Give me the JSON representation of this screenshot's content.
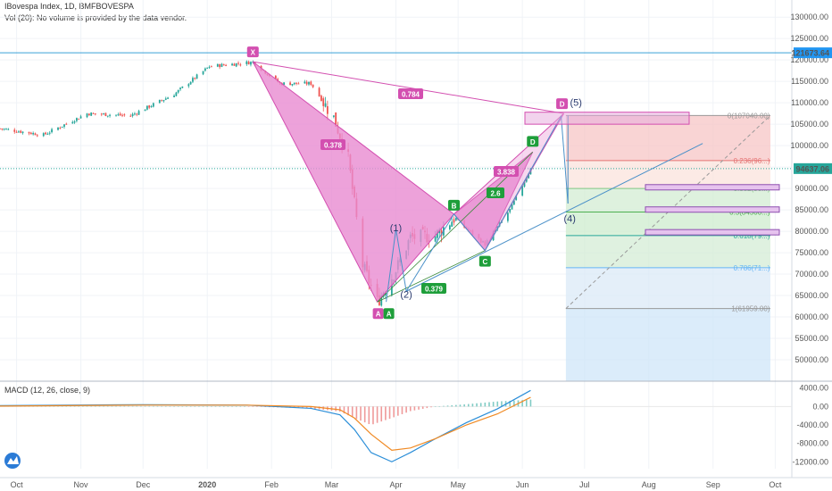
{
  "header": {
    "symbol_line": "IBovespa Index, 1D, BMFBOVESPA",
    "volume_line": "Vol (20): No volume is provided by the data vendor."
  },
  "macd_label": "MACD (12, 26, close, 9)",
  "colors": {
    "up": "#26a69a",
    "down": "#ef5350",
    "pattern": "#d34fb0",
    "pattern_fill": "#e98bd1",
    "green_badge": "#1e9e3a",
    "hline": "#3aa0d8",
    "macd": "#2b8ed8",
    "signal": "#f08a24"
  },
  "chart_data": {
    "type": "candlestick",
    "price_axis": {
      "ylim": [
        45000,
        134000
      ],
      "ticks": [
        "130000.00",
        "125000.00",
        "120000.00",
        "115000.00",
        "110000.00",
        "105000.00",
        "100000.00",
        "95000.00",
        "90000.00",
        "85000.00",
        "80000.00",
        "75000.00",
        "70000.00",
        "65000.00",
        "60000.00",
        "55000.00",
        "50000.00"
      ]
    },
    "time_axis": {
      "labels": [
        "Oct",
        "Nov",
        "Dec",
        "2020",
        "Feb",
        "Mar",
        "Apr",
        "May",
        "Jun",
        "Jul",
        "Aug",
        "Sep",
        "Oct"
      ]
    },
    "price_labels": [
      {
        "text": "121673.64",
        "value": 121673.64,
        "color": "#2196f3"
      },
      {
        "text": "94637.06",
        "value": 94637.06,
        "color": "#26a69a"
      }
    ],
    "closes": [
      {
        "date": "2019-09-23",
        "close": 104000
      },
      {
        "date": "2019-10-14",
        "close": 102500
      },
      {
        "date": "2019-11-04",
        "close": 107500
      },
      {
        "date": "2019-11-25",
        "close": 107000
      },
      {
        "date": "2019-12-16",
        "close": 112000
      },
      {
        "date": "2020-01-02",
        "close": 118500
      },
      {
        "date": "2020-01-23",
        "close": 119500
      },
      {
        "date": "2020-02-05",
        "close": 114500
      },
      {
        "date": "2020-02-20",
        "close": 114500
      },
      {
        "date": "2020-03-02",
        "close": 106500
      },
      {
        "date": "2020-03-09",
        "close": 97000
      },
      {
        "date": "2020-03-16",
        "close": 72000
      },
      {
        "date": "2020-03-23",
        "close": 63500
      },
      {
        "date": "2020-04-01",
        "close": 71000
      },
      {
        "date": "2020-04-08",
        "close": 78500
      },
      {
        "date": "2020-04-20",
        "close": 79000
      },
      {
        "date": "2020-04-29",
        "close": 83000
      },
      {
        "date": "2020-05-14",
        "close": 77000
      },
      {
        "date": "2020-05-26",
        "close": 85000
      },
      {
        "date": "2020-06-05",
        "close": 94637
      }
    ],
    "harmonic_pattern": {
      "points": [
        {
          "label": "X",
          "date": "2020-01-23",
          "value": 119600
        },
        {
          "label": "A",
          "date": "2020-03-23",
          "value": 63500
        },
        {
          "label": "B",
          "date": "2020-04-29",
          "value": 84000
        },
        {
          "label": "C",
          "date": "2020-05-14",
          "value": 75500
        },
        {
          "label": "D",
          "date": "2020-06-06",
          "value": 98500
        },
        {
          "label": "D",
          "date": "2020-06-21",
          "value": 107500
        }
      ],
      "ratios": [
        {
          "text": "0.378"
        },
        {
          "text": "0.784"
        },
        {
          "text": "0.379"
        },
        {
          "text": "2.6"
        },
        {
          "text": "3.838"
        }
      ],
      "second_a_label": "A"
    },
    "elliott_waves": [
      {
        "label": "(1)",
        "date": "2020-04-01",
        "value": 80000
      },
      {
        "label": "(2)",
        "date": "2020-04-06",
        "value": 64500
      },
      {
        "label": "(4)",
        "date": "2020-06-23",
        "value": 86000
      },
      {
        "label": "(5)",
        "date": "2020-06-23",
        "value": 108500
      }
    ],
    "fibonacci": [
      {
        "text": "0(107040.00)",
        "level": 0,
        "value": 107040
      },
      {
        "text": "0.236(96...)",
        "level": 0.236,
        "value": 96500
      },
      {
        "text": "0.382(90...)",
        "level": 0.382,
        "value": 90000
      },
      {
        "text": "0.5(84500...)",
        "level": 0.5,
        "value": 84500
      },
      {
        "text": "0.618(79...)",
        "level": 0.618,
        "value": 79000
      },
      {
        "text": "0.786(71...)",
        "level": 0.786,
        "value": 71500
      },
      {
        "text": "1(61959.00)",
        "level": 1,
        "value": 61959
      }
    ],
    "macd": {
      "ticks": [
        "4000.00",
        "0.00",
        "-4000.00",
        "-8000.00",
        "-12000.00"
      ],
      "ylim": [
        -13500,
        5500
      ],
      "macd_line": [
        {
          "date": "2019-09-23",
          "value": 200
        },
        {
          "date": "2019-12-01",
          "value": 400
        },
        {
          "date": "2020-01-20",
          "value": 300
        },
        {
          "date": "2020-02-20",
          "value": -400
        },
        {
          "date": "2020-03-05",
          "value": -1800
        },
        {
          "date": "2020-03-12",
          "value": -5000
        },
        {
          "date": "2020-03-20",
          "value": -10000
        },
        {
          "date": "2020-03-30",
          "value": -12000
        },
        {
          "date": "2020-04-08",
          "value": -10000
        },
        {
          "date": "2020-04-20",
          "value": -7000
        },
        {
          "date": "2020-05-05",
          "value": -3500
        },
        {
          "date": "2020-05-20",
          "value": -500
        },
        {
          "date": "2020-06-05",
          "value": 3500
        }
      ],
      "signal_line": [
        {
          "date": "2019-09-23",
          "value": 100
        },
        {
          "date": "2019-12-01",
          "value": 300
        },
        {
          "date": "2020-01-20",
          "value": 300
        },
        {
          "date": "2020-02-20",
          "value": 0
        },
        {
          "date": "2020-03-05",
          "value": -700
        },
        {
          "date": "2020-03-12",
          "value": -2500
        },
        {
          "date": "2020-03-20",
          "value": -6000
        },
        {
          "date": "2020-03-30",
          "value": -9500
        },
        {
          "date": "2020-04-08",
          "value": -9000
        },
        {
          "date": "2020-04-20",
          "value": -7000
        },
        {
          "date": "2020-05-05",
          "value": -4000
        },
        {
          "date": "2020-05-20",
          "value": -1600
        },
        {
          "date": "2020-06-05",
          "value": 2000
        }
      ]
    }
  }
}
